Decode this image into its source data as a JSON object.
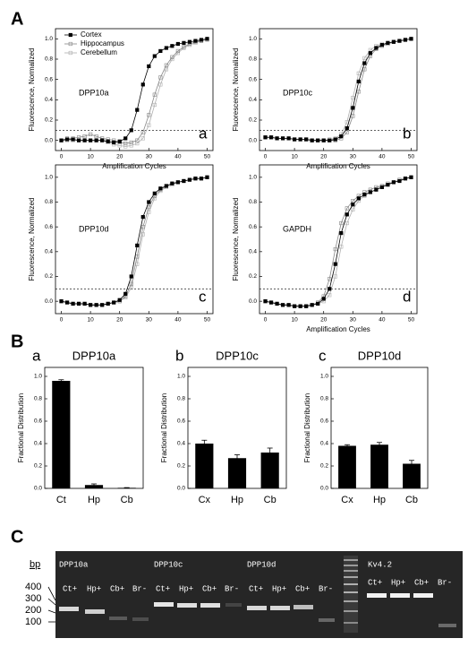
{
  "panels": [
    "A",
    "B",
    "C"
  ],
  "chart_data": [
    {
      "type": "line",
      "annotation": "DPP10a",
      "panel_label": "a",
      "xlabel": "Amplification Cycles",
      "ylabel": "Fluorescence, Normalized",
      "threshold": 0.1,
      "legend": "upper left",
      "xlim": [
        -2,
        52
      ],
      "ylim": [
        -0.1,
        1.1
      ],
      "xticks": [
        0,
        10,
        20,
        30,
        40,
        50
      ],
      "yticks": [
        {
          "value": 0,
          "label": "0.0"
        },
        0.2,
        0.4,
        0.6,
        0.8,
        {
          "value": 1,
          "label": "1.0"
        }
      ],
      "x": [
        0,
        2,
        4,
        6,
        8,
        10,
        12,
        14,
        16,
        18,
        20,
        22,
        24,
        26,
        28,
        30,
        32,
        34,
        36,
        38,
        40,
        42,
        44,
        46,
        48,
        50
      ],
      "series": [
        {
          "name": "Cortex",
          "color": "#000000",
          "marker": "filled",
          "values": [
            0,
            0.01,
            0.01,
            0,
            0,
            0,
            0,
            0,
            -0.01,
            -0.02,
            -0.01,
            0.02,
            0.1,
            0.3,
            0.55,
            0.73,
            0.83,
            0.88,
            0.91,
            0.93,
            0.95,
            0.96,
            0.97,
            0.98,
            0.99,
            1.0
          ]
        },
        {
          "name": "Hippocampus",
          "color": "#888888",
          "marker": "open",
          "values": [
            0,
            0.02,
            0.02,
            0.03,
            0.04,
            0.06,
            0.04,
            0.02,
            0.01,
            0,
            -0.02,
            -0.03,
            -0.02,
            0,
            0.08,
            0.25,
            0.45,
            0.62,
            0.74,
            0.82,
            0.88,
            0.92,
            0.95,
            0.97,
            0.98,
            1.0
          ]
        },
        {
          "name": "Cerebellum",
          "color": "#b0b0b0",
          "marker": "open",
          "values": [
            0,
            0,
            0,
            0,
            0,
            0,
            0,
            0,
            -0.02,
            -0.04,
            -0.05,
            -0.06,
            -0.05,
            -0.03,
            0.02,
            0.15,
            0.35,
            0.55,
            0.7,
            0.8,
            0.86,
            0.91,
            0.94,
            0.96,
            0.98,
            0.99
          ]
        }
      ]
    },
    {
      "type": "line",
      "annotation": "DPP10c",
      "panel_label": "b",
      "xlabel": "Amplification Cycles",
      "ylabel": "Fluorescence, Normalized",
      "threshold": 0.1,
      "xlim": [
        -2,
        52
      ],
      "ylim": [
        -0.1,
        1.1
      ],
      "xticks": [
        0,
        10,
        20,
        30,
        40,
        50
      ],
      "yticks": [
        {
          "value": 0,
          "label": "0.0"
        },
        0.2,
        0.4,
        0.6,
        0.8,
        {
          "value": 1,
          "label": "1.0"
        }
      ],
      "x": [
        0,
        2,
        4,
        6,
        8,
        10,
        12,
        14,
        16,
        18,
        20,
        22,
        24,
        26,
        28,
        30,
        32,
        34,
        36,
        38,
        40,
        42,
        44,
        46,
        48,
        50
      ],
      "series": [
        {
          "color": "#000000",
          "marker": "filled",
          "values": [
            0.03,
            0.03,
            0.02,
            0.02,
            0.02,
            0.01,
            0.01,
            0.01,
            0,
            0,
            0,
            0,
            0.01,
            0.04,
            0.12,
            0.32,
            0.58,
            0.76,
            0.86,
            0.91,
            0.94,
            0.96,
            0.97,
            0.98,
            0.99,
            1.0
          ]
        },
        {
          "color": "#888888",
          "marker": "open",
          "values": [
            0.03,
            0.03,
            0.02,
            0.02,
            0.02,
            0.01,
            0.01,
            0.01,
            0,
            0,
            0,
            0,
            0,
            0.02,
            0.08,
            0.24,
            0.48,
            0.7,
            0.83,
            0.9,
            0.93,
            0.95,
            0.97,
            0.98,
            0.99,
            1.0
          ]
        },
        {
          "color": "#b0b0b0",
          "marker": "open",
          "values": [
            0.03,
            0.03,
            0.02,
            0.02,
            0.02,
            0.01,
            0.01,
            0.01,
            0,
            0,
            0,
            0.01,
            0.02,
            0.06,
            0.18,
            0.42,
            0.66,
            0.81,
            0.89,
            0.93,
            0.95,
            0.96,
            0.97,
            0.98,
            0.99,
            1.0
          ]
        }
      ]
    },
    {
      "type": "line",
      "annotation": "DPP10d",
      "panel_label": "c",
      "ylabel": "Fluorescence, Normalized",
      "threshold": 0.1,
      "xlim": [
        -2,
        52
      ],
      "ylim": [
        -0.1,
        1.1
      ],
      "xticks": [
        0,
        10,
        20,
        30,
        40,
        50
      ],
      "yticks": [
        {
          "value": 0,
          "label": "0.0"
        },
        0.2,
        0.4,
        0.6,
        0.8,
        {
          "value": 1,
          "label": "1.0"
        }
      ],
      "x": [
        0,
        2,
        4,
        6,
        8,
        10,
        12,
        14,
        16,
        18,
        20,
        22,
        24,
        26,
        28,
        30,
        32,
        34,
        36,
        38,
        40,
        42,
        44,
        46,
        48,
        50
      ],
      "series": [
        {
          "color": "#000000",
          "marker": "filled",
          "values": [
            0,
            -0.01,
            -0.02,
            -0.02,
            -0.02,
            -0.03,
            -0.03,
            -0.03,
            -0.02,
            -0.01,
            0.01,
            0.06,
            0.2,
            0.45,
            0.68,
            0.8,
            0.87,
            0.91,
            0.93,
            0.95,
            0.96,
            0.97,
            0.98,
            0.99,
            0.99,
            1.0
          ]
        },
        {
          "color": "#888888",
          "marker": "open",
          "values": [
            0,
            -0.01,
            -0.02,
            -0.02,
            -0.02,
            -0.03,
            -0.03,
            -0.03,
            -0.02,
            -0.01,
            0,
            0.04,
            0.14,
            0.36,
            0.6,
            0.76,
            0.85,
            0.9,
            0.93,
            0.95,
            0.96,
            0.97,
            0.98,
            0.99,
            0.99,
            1.0
          ]
        },
        {
          "color": "#b0b0b0",
          "marker": "open",
          "values": [
            0,
            -0.01,
            -0.02,
            -0.02,
            -0.02,
            -0.03,
            -0.03,
            -0.03,
            -0.02,
            -0.01,
            0,
            0.03,
            0.11,
            0.3,
            0.54,
            0.72,
            0.83,
            0.89,
            0.92,
            0.94,
            0.96,
            0.97,
            0.98,
            0.99,
            0.99,
            1.0
          ]
        }
      ]
    },
    {
      "type": "line",
      "annotation": "GAPDH",
      "panel_label": "d",
      "xlabel": "Amplification Cycles",
      "ylabel": "Fluorescence, Normalized",
      "threshold": 0.1,
      "xlim": [
        -2,
        52
      ],
      "ylim": [
        -0.1,
        1.1
      ],
      "xticks": [
        0,
        10,
        20,
        30,
        40,
        50
      ],
      "yticks": [
        {
          "value": 0,
          "label": "0.0"
        },
        0.2,
        0.4,
        0.6,
        0.8,
        {
          "value": 1,
          "label": "1.0"
        }
      ],
      "x": [
        0,
        2,
        4,
        6,
        8,
        10,
        12,
        14,
        16,
        18,
        20,
        22,
        24,
        26,
        28,
        30,
        32,
        34,
        36,
        38,
        40,
        42,
        44,
        46,
        48,
        50
      ],
      "series": [
        {
          "color": "#000000",
          "marker": "filled",
          "values": [
            0,
            -0.01,
            -0.02,
            -0.03,
            -0.03,
            -0.04,
            -0.04,
            -0.04,
            -0.03,
            -0.02,
            0.02,
            0.1,
            0.3,
            0.55,
            0.7,
            0.78,
            0.83,
            0.86,
            0.88,
            0.9,
            0.92,
            0.94,
            0.96,
            0.97,
            0.99,
            1.0
          ]
        },
        {
          "color": "#888888",
          "marker": "open",
          "values": [
            0,
            -0.01,
            -0.02,
            -0.03,
            -0.03,
            -0.04,
            -0.04,
            -0.04,
            -0.03,
            -0.01,
            0.04,
            0.18,
            0.42,
            0.63,
            0.75,
            0.81,
            0.85,
            0.88,
            0.9,
            0.92,
            0.93,
            0.95,
            0.96,
            0.98,
            0.99,
            1.0
          ]
        },
        {
          "color": "#b0b0b0",
          "marker": "open",
          "values": [
            0,
            -0.01,
            -0.02,
            -0.03,
            -0.03,
            -0.04,
            -0.04,
            -0.04,
            -0.03,
            -0.02,
            0,
            0.05,
            0.2,
            0.44,
            0.63,
            0.74,
            0.81,
            0.85,
            0.88,
            0.9,
            0.92,
            0.94,
            0.96,
            0.97,
            0.99,
            1.0
          ]
        }
      ]
    },
    {
      "type": "bar",
      "title": "DPP10a",
      "panel_label": "a",
      "ylabel": "Fractional Distribution",
      "color": "#000000",
      "categories": [
        "Ct",
        "Hp",
        "Cb"
      ],
      "values": [
        0.96,
        0.03,
        0.005
      ],
      "errors": [
        0.01,
        0.01,
        0.002
      ],
      "ylim": [
        0,
        1.08
      ],
      "yticks": [
        {
          "value": 0,
          "label": "0.0"
        },
        0.2,
        0.4,
        0.6,
        0.8,
        {
          "value": 1,
          "label": "1.0"
        }
      ]
    },
    {
      "type": "bar",
      "title": "DPP10c",
      "panel_label": "b",
      "ylabel": "Fractional Distribution",
      "color": "#000000",
      "categories": [
        "Cx",
        "Hp",
        "Cb"
      ],
      "values": [
        0.4,
        0.27,
        0.32
      ],
      "errors": [
        0.03,
        0.03,
        0.04
      ],
      "ylim": [
        0,
        1.08
      ],
      "yticks": [
        {
          "value": 0,
          "label": "0.0"
        },
        0.2,
        0.4,
        0.6,
        0.8,
        {
          "value": 1,
          "label": "1.0"
        }
      ]
    },
    {
      "type": "bar",
      "title": "DPP10d",
      "panel_label": "c",
      "ylabel": "Fractional Distribution",
      "color": "#000000",
      "categories": [
        "Cx",
        "Hp",
        "Cb"
      ],
      "values": [
        0.38,
        0.39,
        0.22
      ],
      "errors": [
        0.01,
        0.02,
        0.03
      ],
      "ylim": [
        0,
        1.08
      ],
      "yticks": [
        {
          "value": 0,
          "label": "0.0"
        },
        0.2,
        0.4,
        0.6,
        0.8,
        {
          "value": 1,
          "label": "1.0"
        }
      ]
    }
  ],
  "gel": {
    "unit": "bp",
    "markers": [
      400,
      300,
      200,
      100
    ],
    "groups": [
      {
        "name": "DPP10a",
        "lanes": [
          "Ct+",
          "Hp+",
          "Cb+",
          "Br-"
        ]
      },
      {
        "name": "DPP10c",
        "lanes": [
          "Ct+",
          "Hp+",
          "Cb+",
          "Br-"
        ]
      },
      {
        "name": "DPP10d",
        "lanes": [
          "Ct+",
          "Hp+",
          "Cb+",
          "Br-"
        ]
      },
      {
        "name": "Kv4.2",
        "lanes": [
          "Ct+",
          "Hp+",
          "Cb+",
          "Br-"
        ]
      }
    ]
  }
}
